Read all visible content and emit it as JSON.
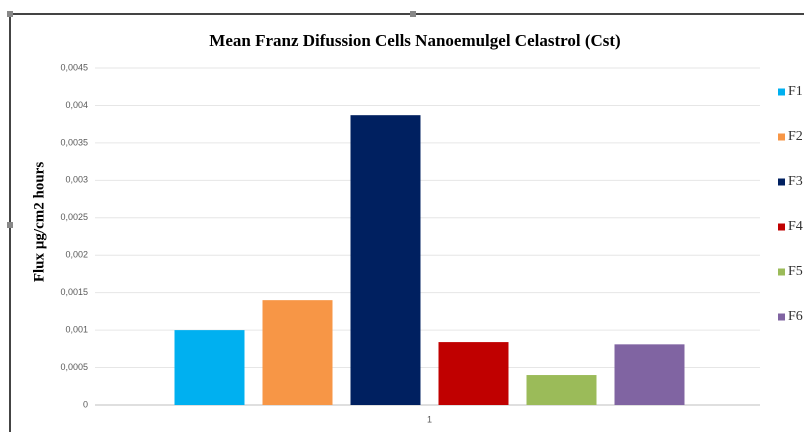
{
  "chart_data": {
    "type": "bar",
    "title": "Mean Franz Difussion Cells Nanoemulgel Celastrol (Cst)",
    "y_label": "Flux µg/cm2 hours",
    "categories": [
      "1"
    ],
    "series": [
      {
        "name": "F1",
        "color": "#00b0f0",
        "values": [
          0.001
        ]
      },
      {
        "name": "F2",
        "color": "#f79646",
        "values": [
          0.0014
        ]
      },
      {
        "name": "F3",
        "color": "#002060",
        "values": [
          0.00387
        ]
      },
      {
        "name": "F4",
        "color": "#c00000",
        "values": [
          0.00084
        ]
      },
      {
        "name": "F5",
        "color": "#9bbb59",
        "values": [
          0.0004
        ]
      },
      {
        "name": "F6",
        "color": "#8064a2",
        "values": [
          0.00081
        ]
      }
    ],
    "ylim": [
      0,
      0.0045
    ],
    "yticks": [
      0,
      {
        "value": 0.0005,
        "label": "0,0005"
      },
      {
        "value": 0.001,
        "label": "0,001"
      },
      {
        "value": 0.0015,
        "label": "0,0015"
      },
      {
        "value": 0.002,
        "label": "0,002"
      },
      {
        "value": 0.0025,
        "label": "0,0025"
      },
      {
        "value": 0.003,
        "label": "0,003"
      },
      {
        "value": 0.0035,
        "label": "0,0035"
      },
      {
        "value": 0.004,
        "label": "0,004"
      },
      {
        "value": 0.0045,
        "label": "0,0045"
      }
    ],
    "grid": true,
    "legend": "right"
  }
}
